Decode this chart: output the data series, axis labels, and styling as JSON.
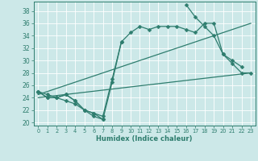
{
  "xlabel": "Humidex (Indice chaleur)",
  "bg_color": "#cce8e8",
  "grid_color": "#ffffff",
  "line_color": "#2e7d6e",
  "xlim": [
    -0.5,
    23.5
  ],
  "ylim": [
    19.5,
    39.5
  ],
  "xticks": [
    0,
    1,
    2,
    3,
    4,
    5,
    6,
    7,
    8,
    9,
    10,
    11,
    12,
    13,
    14,
    15,
    16,
    17,
    18,
    19,
    20,
    21,
    22,
    23
  ],
  "yticks": [
    20,
    22,
    24,
    26,
    28,
    30,
    32,
    34,
    36,
    38
  ],
  "series1_y": [
    25.0,
    24.0,
    24.0,
    24.5,
    23.5,
    22.0,
    21.5,
    20.5,
    26.5,
    33.0,
    34.5,
    35.5,
    35.0,
    35.5,
    35.5,
    35.5,
    35.0,
    34.5,
    36.0,
    36.0,
    31.0,
    29.5,
    28.0,
    28.0
  ],
  "series2_y": [
    25.0,
    24.0,
    24.0,
    24.5,
    23.5,
    22.0,
    21.5,
    21.0,
    27.0,
    33.0,
    null,
    null,
    null,
    null,
    null,
    null,
    39.0,
    37.0,
    35.5,
    34.0,
    31.0,
    30.0,
    29.0,
    null
  ],
  "series3_y": [
    25.0,
    24.5,
    24.0,
    23.5,
    23.0,
    22.0,
    21.0,
    20.5,
    null,
    null,
    null,
    null,
    null,
    null,
    null,
    null,
    null,
    null,
    null,
    null,
    null,
    null,
    null,
    null
  ],
  "trend1_x": [
    0,
    23
  ],
  "trend1_y": [
    24.0,
    28.0
  ],
  "trend2_x": [
    0,
    23
  ],
  "trend2_y": [
    24.5,
    36.0
  ]
}
